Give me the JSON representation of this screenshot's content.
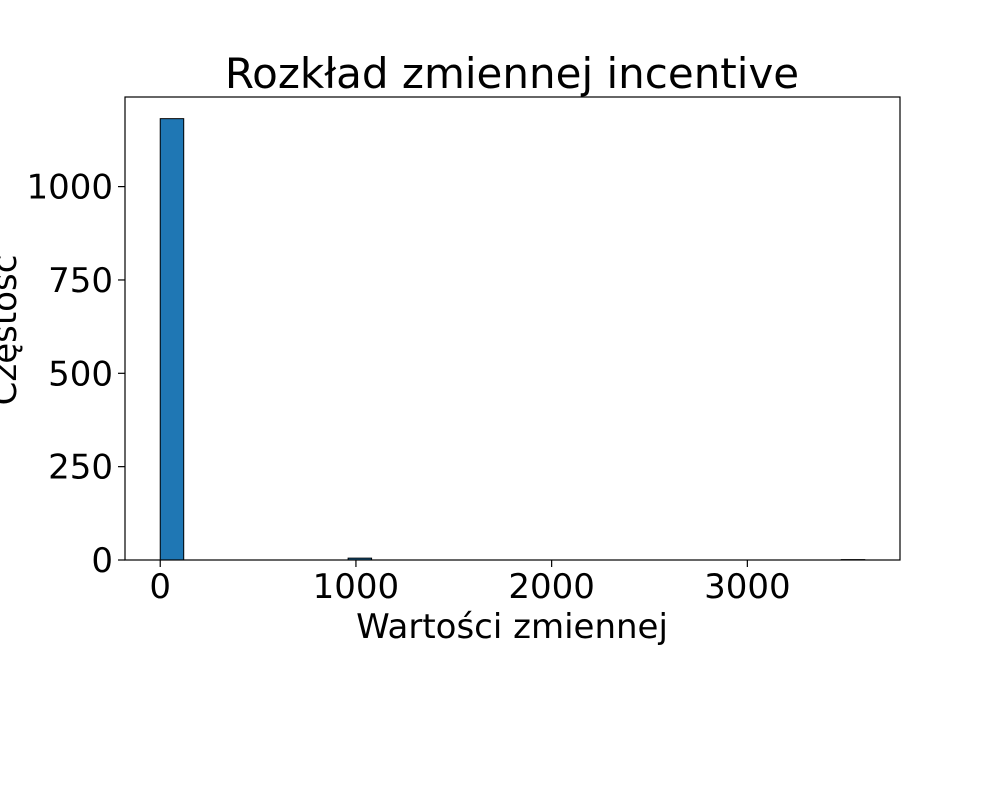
{
  "chart_data": {
    "type": "bar",
    "title": "Rozkład zmiennej incentive",
    "xlabel": "Wartości zmiennej",
    "ylabel": "Częstość",
    "bar_color": "#1f77b4",
    "edge_color": "#000000",
    "xlim": [
      -180,
      3780
    ],
    "ylim": [
      0,
      1240
    ],
    "x_ticks": [
      0,
      1000,
      2000,
      3000
    ],
    "x_tick_labels": [
      "0",
      "1000",
      "2000",
      "3000"
    ],
    "y_ticks": [
      0,
      250,
      500,
      750,
      1000
    ],
    "y_tick_labels": [
      "0",
      "250",
      "500",
      "750",
      "1000"
    ],
    "grid": false,
    "bins": [
      {
        "start": 0,
        "end": 120,
        "count": 1182
      },
      {
        "start": 120,
        "end": 240,
        "count": 0
      },
      {
        "start": 240,
        "end": 360,
        "count": 0
      },
      {
        "start": 360,
        "end": 480,
        "count": 0
      },
      {
        "start": 480,
        "end": 600,
        "count": 0
      },
      {
        "start": 600,
        "end": 720,
        "count": 0
      },
      {
        "start": 720,
        "end": 840,
        "count": 0
      },
      {
        "start": 840,
        "end": 960,
        "count": 0
      },
      {
        "start": 960,
        "end": 1080,
        "count": 5
      },
      {
        "start": 1080,
        "end": 1200,
        "count": 0
      },
      {
        "start": 1200,
        "end": 1320,
        "count": 0
      },
      {
        "start": 1320,
        "end": 1440,
        "count": 0
      },
      {
        "start": 1440,
        "end": 1560,
        "count": 0
      },
      {
        "start": 1560,
        "end": 1680,
        "count": 0
      },
      {
        "start": 1680,
        "end": 1800,
        "count": 0
      },
      {
        "start": 1800,
        "end": 1920,
        "count": 0
      },
      {
        "start": 1920,
        "end": 2040,
        "count": 0
      },
      {
        "start": 2040,
        "end": 2160,
        "count": 0
      },
      {
        "start": 2160,
        "end": 2280,
        "count": 0
      },
      {
        "start": 2280,
        "end": 2400,
        "count": 0
      },
      {
        "start": 2400,
        "end": 2520,
        "count": 0
      },
      {
        "start": 2520,
        "end": 2640,
        "count": 0
      },
      {
        "start": 2640,
        "end": 2760,
        "count": 0
      },
      {
        "start": 2760,
        "end": 2880,
        "count": 0
      },
      {
        "start": 2880,
        "end": 3000,
        "count": 0
      },
      {
        "start": 3000,
        "end": 3120,
        "count": 0
      },
      {
        "start": 3120,
        "end": 3240,
        "count": 0
      },
      {
        "start": 3240,
        "end": 3360,
        "count": 0
      },
      {
        "start": 3360,
        "end": 3480,
        "count": 0
      },
      {
        "start": 3480,
        "end": 3600,
        "count": 1
      }
    ]
  }
}
